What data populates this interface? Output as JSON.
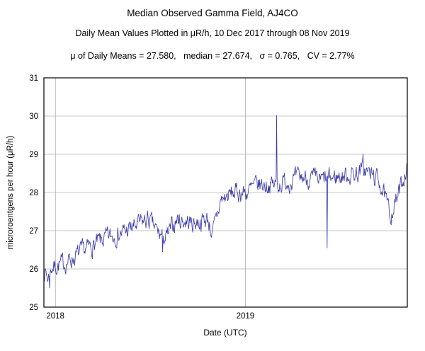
{
  "title": "Median Observed Gamma Field, AJ4CO",
  "subtitle": "Daily Mean Values Plotted in μR/h, 10 Dec 2017 through 08 Nov 2019",
  "stats_line": "μ of Daily Means = 27.580,   median = 27.674,   σ = 0.765,   CV = 2.77%",
  "chart_data": {
    "type": "line",
    "title": "Median Observed Gamma Field, AJ4CO",
    "subtitle": "Daily Mean Values Plotted in μR/h, 10 Dec 2017 through 08 Nov 2019",
    "xlabel": "Date (UTC)",
    "ylabel": "microroentgens per hour (μR/h)",
    "ylim": [
      25,
      31
    ],
    "yticks": [
      25,
      26,
      27,
      28,
      29,
      30,
      31
    ],
    "x_start_date": "2017-12-10",
    "x_end_date": "2019-11-08",
    "total_days": 698,
    "year_gridlines": [
      {
        "label": "2018",
        "day": 22
      },
      {
        "label": "2019",
        "day": 387
      }
    ],
    "grid": true,
    "legend": "none",
    "stats": {
      "mean_of_daily_means": 27.58,
      "median": 27.674,
      "sigma": 0.765,
      "cv_percent": 2.77
    },
    "line_color": "#3c3caa",
    "grid_color": "#8f8f8f",
    "frame_color": "#000000",
    "anchors": [
      [
        0,
        26.0
      ],
      [
        8,
        25.75
      ],
      [
        15,
        26.05
      ],
      [
        40,
        26.15
      ],
      [
        80,
        26.5
      ],
      [
        120,
        26.8
      ],
      [
        160,
        27.0
      ],
      [
        200,
        27.3
      ],
      [
        222,
        26.9
      ],
      [
        235,
        26.8
      ],
      [
        255,
        27.3
      ],
      [
        285,
        27.2
      ],
      [
        315,
        27.3
      ],
      [
        324,
        26.9
      ],
      [
        340,
        27.8
      ],
      [
        365,
        28.0
      ],
      [
        390,
        28.0
      ],
      [
        410,
        28.2
      ],
      [
        445,
        28.2
      ],
      [
        470,
        28.3
      ],
      [
        500,
        28.4
      ],
      [
        530,
        28.3
      ],
      [
        560,
        28.4
      ],
      [
        600,
        28.5
      ],
      [
        615,
        28.6
      ],
      [
        645,
        28.3
      ],
      [
        665,
        27.4
      ],
      [
        680,
        27.9
      ],
      [
        698,
        28.7
      ]
    ],
    "spikes": [
      [
        11,
        25.5
      ],
      [
        228,
        26.45
      ],
      [
        447,
        30.02
      ],
      [
        544,
        26.55
      ],
      [
        613,
        29.0
      ],
      [
        698,
        28.75
      ]
    ],
    "noise_scale": 0.2,
    "noise_ar": 0.55,
    "seed": 7
  }
}
